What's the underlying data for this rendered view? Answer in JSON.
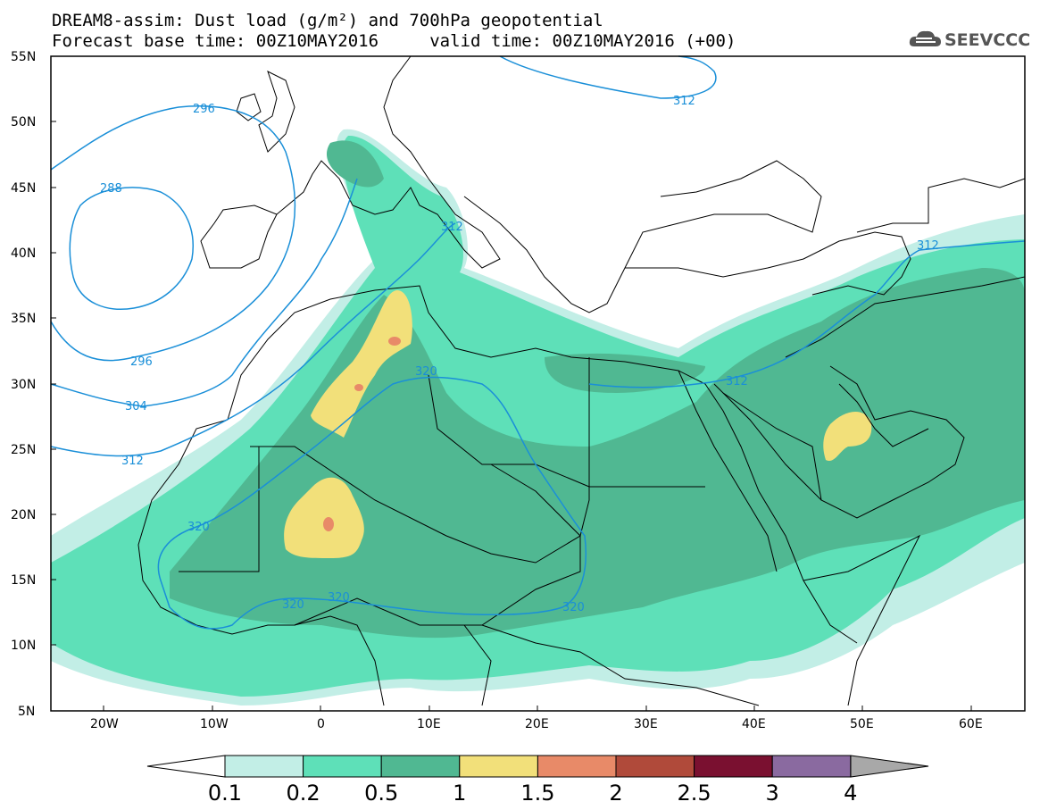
{
  "title": {
    "line1": "DREAM8-assim: Dust load (g/m²) and 700hPa geopotential",
    "line2": "Forecast base time: 00Z10MAY2016     valid time: 00Z10MAY2016 (+00)"
  },
  "logo": {
    "icon": "cloud-icon",
    "text": "SEEVCCC"
  },
  "axes": {
    "lat_ticks": [
      "55N",
      "50N",
      "45N",
      "40N",
      "35N",
      "30N",
      "25N",
      "20N",
      "15N",
      "10N",
      "5N"
    ],
    "lon_ticks": [
      "20W",
      "10W",
      "0",
      "10E",
      "20E",
      "30E",
      "40E",
      "50E",
      "60E"
    ]
  },
  "contour_labels": [
    "296",
    "288",
    "312",
    "312",
    "296",
    "304",
    "312",
    "320",
    "320",
    "320",
    "320",
    "320",
    "312",
    "312"
  ],
  "colors": {
    "c01": "#c2eee6",
    "c02": "#5ee0b8",
    "c05": "#50b892",
    "c1": "#f2e07a",
    "c15": "#e88a68",
    "c2": "#b04a3a",
    "c25": "#7a1030",
    "c3": "#8a6aa0",
    "c4": "#a8a8a8",
    "contour": "#1a8fd8",
    "border": "#000000"
  },
  "colorbar": {
    "labels": [
      "0.1",
      "0.2",
      "0.5",
      "1",
      "1.5",
      "2",
      "2.5",
      "3",
      "4"
    ],
    "colors": [
      "#c2eee6",
      "#5ee0b8",
      "#50b892",
      "#f2e07a",
      "#e88a68",
      "#b04a3a",
      "#7a1030",
      "#8a6aa0"
    ],
    "under_color": "#ffffff",
    "over_color": "#a8a8a8"
  }
}
